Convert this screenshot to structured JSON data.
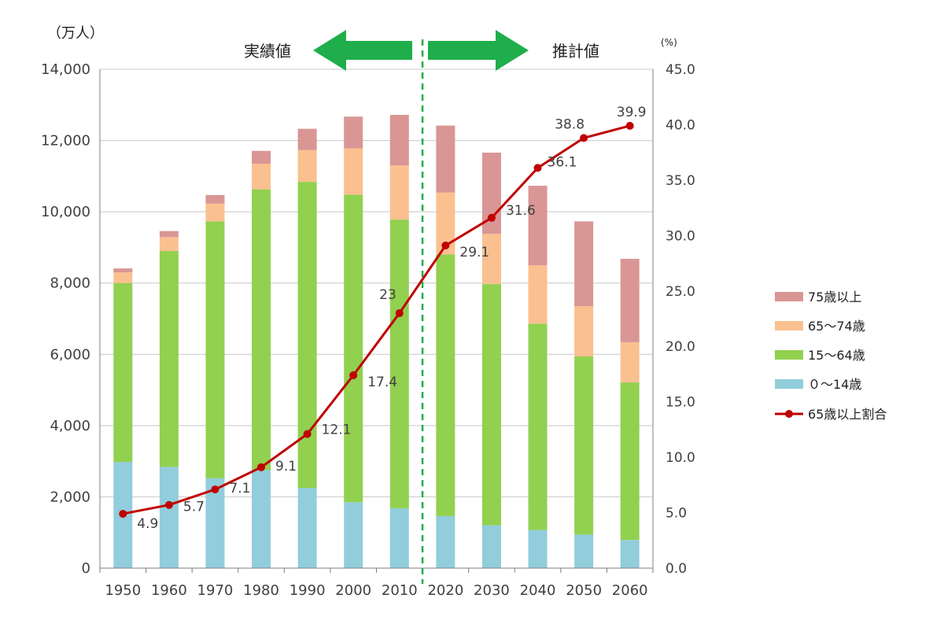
{
  "chart_data": {
    "type": "bar",
    "stacked": true,
    "categories": [
      "1950",
      "1960",
      "1970",
      "1980",
      "1990",
      "2000",
      "2010",
      "2020",
      "2030",
      "2040",
      "2050",
      "2060"
    ],
    "series": [
      {
        "name": "０～14歳",
        "color": "#92CDDC",
        "values": [
          2980,
          2840,
          2520,
          2750,
          2250,
          1850,
          1680,
          1460,
          1200,
          1070,
          940,
          790
        ]
      },
      {
        "name": "15～64歳",
        "color": "#92D050",
        "values": [
          5020,
          6060,
          7210,
          7880,
          8590,
          8630,
          8100,
          7340,
          6770,
          5790,
          5000,
          4420
        ]
      },
      {
        "name": "65～74歳",
        "color": "#FAC090",
        "values": [
          300,
          390,
          500,
          720,
          890,
          1300,
          1520,
          1740,
          1410,
          1640,
          1410,
          1130
        ]
      },
      {
        "name": "75歳以上",
        "color": "#D99694",
        "values": [
          110,
          170,
          240,
          360,
          600,
          890,
          1420,
          1880,
          2280,
          2230,
          2380,
          2340
        ]
      }
    ],
    "line_series": {
      "name": "65歳以上割合",
      "color": "#C00000",
      "axis": "right",
      "values": [
        4.9,
        5.7,
        7.1,
        9.1,
        12.1,
        17.4,
        23,
        29.1,
        31.6,
        36.1,
        38.8,
        39.9
      ],
      "labels": [
        "4.9",
        "5.7",
        "7.1",
        "9.1",
        "12.1",
        "17.4",
        "23",
        "29.1",
        "31.6",
        "36.1",
        "38.8",
        "39.9"
      ]
    },
    "ylabel": "（万人）",
    "ylim": [
      0,
      14000
    ],
    "yticks": [
      "0",
      "2,000",
      "4,000",
      "6,000",
      "8,000",
      "10,000",
      "12,000",
      "14,000"
    ],
    "y2label": "(%)",
    "y2lim": [
      0,
      45
    ],
    "y2ticks": [
      "0.0",
      "5.0",
      "10.0",
      "15.0",
      "20.0",
      "25.0",
      "30.0",
      "35.0",
      "40.0",
      "45.0"
    ],
    "grid": true,
    "legend": "right",
    "divider_after_category": "2010",
    "phase_labels": {
      "left": "実績値",
      "right": "推計値"
    },
    "arrow_color": "#1FAE4B"
  }
}
